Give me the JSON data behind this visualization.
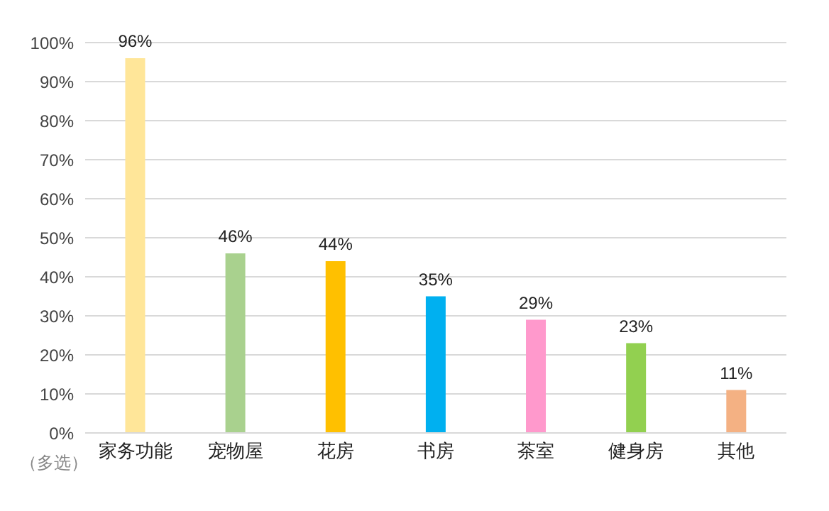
{
  "chart_data": {
    "type": "bar",
    "categories": [
      "家务功能",
      "宠物屋",
      "花房",
      "书房",
      "茶室",
      "健身房",
      "其他"
    ],
    "values": [
      96,
      46,
      44,
      35,
      29,
      23,
      11
    ],
    "colors": [
      "#ffe699",
      "#a9d18e",
      "#ffc000",
      "#00b0f0",
      "#ff99cc",
      "#92d050",
      "#f4b183"
    ],
    "value_labels": [
      "96%",
      "46%",
      "44%",
      "35%",
      "29%",
      "23%",
      "11%"
    ],
    "ylim": [
      0,
      100
    ],
    "yticks": [
      {
        "value": 0,
        "label": "0%"
      },
      {
        "value": 10,
        "label": "10%"
      },
      {
        "value": 20,
        "label": "20%"
      },
      {
        "value": 30,
        "label": "30%"
      },
      {
        "value": 40,
        "label": "40%"
      },
      {
        "value": 50,
        "label": "50%"
      },
      {
        "value": 60,
        "label": "60%"
      },
      {
        "value": 70,
        "label": "70%"
      },
      {
        "value": 80,
        "label": "80%"
      },
      {
        "value": 90,
        "label": "90%"
      },
      {
        "value": 100,
        "label": "100%"
      }
    ],
    "grid": "y",
    "annotations": [
      "（多选）"
    ]
  }
}
